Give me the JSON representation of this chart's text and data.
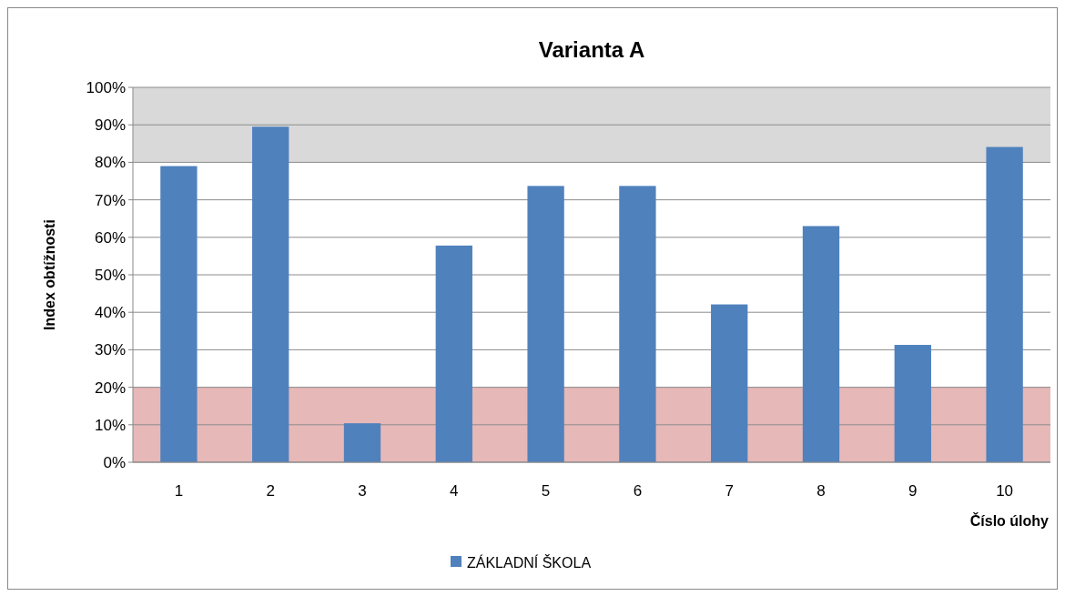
{
  "chart_data": {
    "type": "bar",
    "title": "Varianta A",
    "xlabel": "Číslo úlohy",
    "ylabel": "Index obtížnosti",
    "categories": [
      "1",
      "2",
      "3",
      "4",
      "5",
      "6",
      "7",
      "8",
      "9",
      "10"
    ],
    "series": [
      {
        "name": "ZÁKLADNÍ ŠKOLA",
        "color": "#4f81bd",
        "values": [
          0.79,
          0.895,
          0.104,
          0.578,
          0.737,
          0.737,
          0.421,
          0.63,
          0.313,
          0.841
        ]
      }
    ],
    "ylim": [
      0,
      1
    ],
    "yticks": [
      {
        "value": 0,
        "label": "0%"
      },
      {
        "value": 0.1,
        "label": "10%"
      },
      {
        "value": 0.2,
        "label": "20%"
      },
      {
        "value": 0.3,
        "label": "30%"
      },
      {
        "value": 0.4,
        "label": "40%"
      },
      {
        "value": 0.5,
        "label": "50%"
      },
      {
        "value": 0.6,
        "label": "60%"
      },
      {
        "value": 0.7,
        "label": "70%"
      },
      {
        "value": 0.8,
        "label": "80%"
      },
      {
        "value": 0.9,
        "label": "90%"
      },
      {
        "value": 1,
        "label": "100%"
      }
    ],
    "bands": [
      {
        "axis": "y",
        "from": 0.8,
        "to": 1,
        "color": "#d9d9d9"
      },
      {
        "axis": "y",
        "from": 0,
        "to": 0.2,
        "color": "#e6b8b7"
      }
    ],
    "grid": "y",
    "legend": "bottom"
  }
}
